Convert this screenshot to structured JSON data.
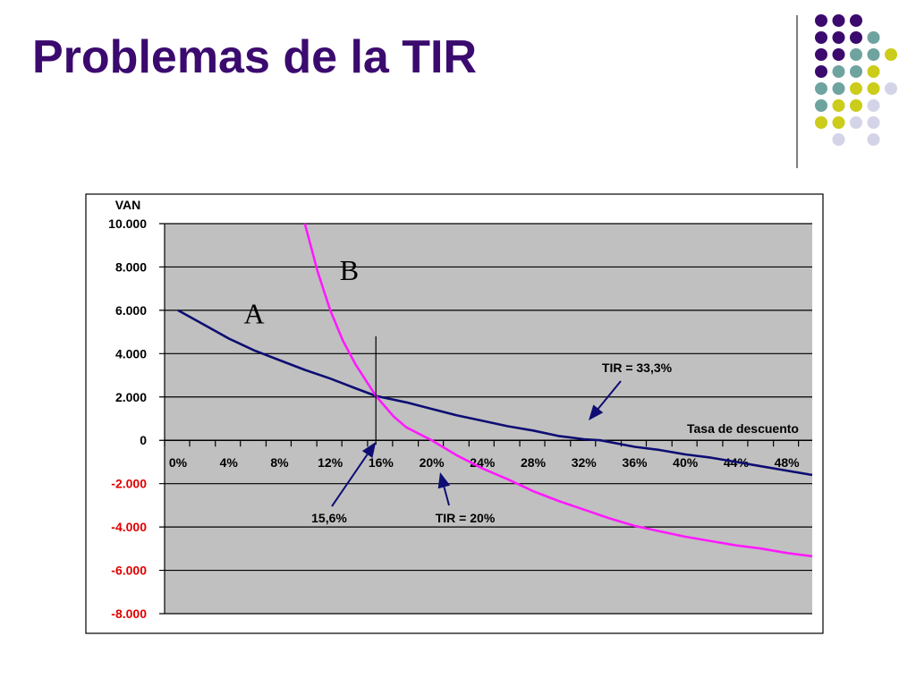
{
  "slide": {
    "title": "Problemas de la TIR"
  },
  "colors": {
    "title": "#3b0a6e",
    "plot_bg": "#c0c0c0",
    "series_a": "#0d0d73",
    "series_b": "#ff1aff",
    "negative_tick": "#e00000",
    "arrow": "#0d0d73",
    "dots": [
      "#3b0a6e",
      "#6fa3a0",
      "#cccc1a",
      "#d4d4e8"
    ]
  },
  "chart_data": {
    "type": "line",
    "ylabel": "VAN",
    "xlabel": "Tasa de descuento",
    "ylim": [
      -8000,
      10000
    ],
    "xlim": [
      0,
      0.5
    ],
    "y_ticks": [
      {
        "value": 10000,
        "label": "10.000"
      },
      {
        "value": 8000,
        "label": "8.000"
      },
      {
        "value": 6000,
        "label": "6.000"
      },
      {
        "value": 4000,
        "label": "4.000"
      },
      {
        "value": 2000,
        "label": "2.000"
      },
      {
        "value": 0,
        "label": "0"
      },
      {
        "value": -2000,
        "label": "-2.000"
      },
      {
        "value": -4000,
        "label": "-4.000"
      },
      {
        "value": -6000,
        "label": "-6.000"
      },
      {
        "value": -8000,
        "label": "-8.000"
      }
    ],
    "x_ticks": [
      {
        "value": 0.0,
        "label": "0%"
      },
      {
        "value": 0.04,
        "label": "4%"
      },
      {
        "value": 0.08,
        "label": "8%"
      },
      {
        "value": 0.12,
        "label": "12%"
      },
      {
        "value": 0.16,
        "label": "16%"
      },
      {
        "value": 0.2,
        "label": "20%"
      },
      {
        "value": 0.24,
        "label": "24%"
      },
      {
        "value": 0.28,
        "label": "28%"
      },
      {
        "value": 0.32,
        "label": "32%"
      },
      {
        "value": 0.36,
        "label": "36%"
      },
      {
        "value": 0.4,
        "label": "40%"
      },
      {
        "value": 0.44,
        "label": "44%"
      },
      {
        "value": 0.48,
        "label": "48%"
      }
    ],
    "grid": true,
    "series": [
      {
        "name": "A",
        "x": [
          0.0,
          0.02,
          0.04,
          0.06,
          0.08,
          0.1,
          0.12,
          0.14,
          0.156,
          0.18,
          0.2,
          0.22,
          0.24,
          0.26,
          0.28,
          0.3,
          0.32,
          0.333,
          0.36,
          0.38,
          0.4,
          0.42,
          0.44,
          0.46,
          0.48,
          0.5
        ],
        "y": [
          6000,
          5350,
          4700,
          4150,
          3700,
          3250,
          2850,
          2400,
          2050,
          1750,
          1450,
          1150,
          900,
          650,
          450,
          200,
          50,
          0,
          -300,
          -450,
          -650,
          -800,
          -1000,
          -1200,
          -1400,
          -1600
        ]
      },
      {
        "name": "B",
        "x": [
          0.1,
          0.11,
          0.12,
          0.13,
          0.14,
          0.156,
          0.17,
          0.18,
          0.2,
          0.22,
          0.24,
          0.26,
          0.28,
          0.3,
          0.32,
          0.34,
          0.36,
          0.38,
          0.4,
          0.42,
          0.44,
          0.46,
          0.48,
          0.5
        ],
        "y": [
          10000,
          7800,
          6000,
          4600,
          3500,
          2050,
          1100,
          600,
          0,
          -700,
          -1300,
          -1800,
          -2350,
          -2800,
          -3200,
          -3600,
          -3950,
          -4200,
          -4450,
          -4650,
          -4850,
          -5000,
          -5200,
          -5350
        ]
      }
    ],
    "annotations": {
      "series_label_a": {
        "text": "A",
        "x": 0.06,
        "y": 5400
      },
      "series_label_b": {
        "text": "B",
        "x": 0.135,
        "y": 7400
      },
      "crossing": {
        "text": "15,6%",
        "x": 0.156
      },
      "tir_b": {
        "text": "TIR = 20%",
        "x": 0.2
      },
      "tir_a": {
        "text": "TIR = 33,3%",
        "x": 0.333
      }
    }
  }
}
